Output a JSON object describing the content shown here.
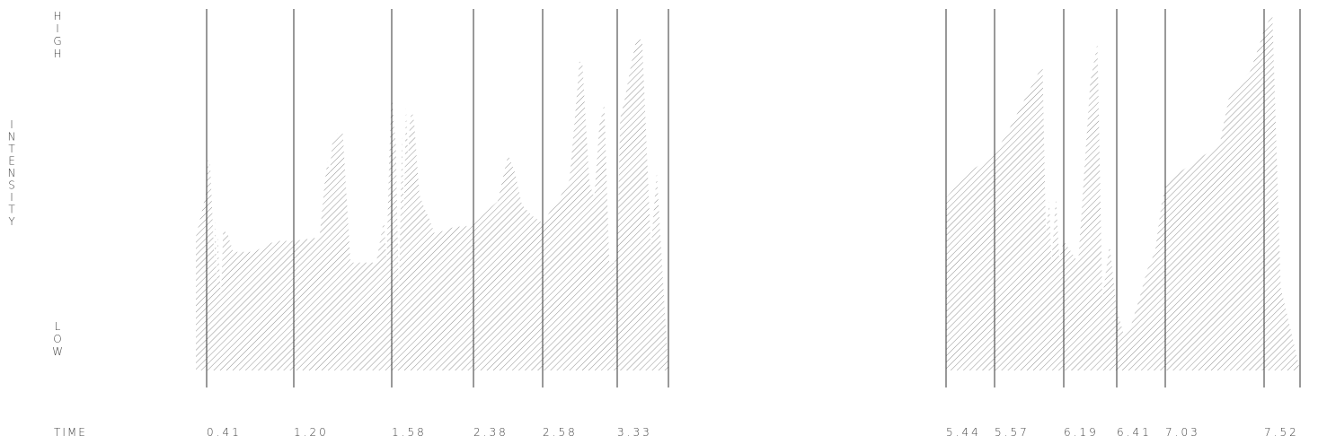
{
  "chart_data": {
    "type": "area",
    "title": "",
    "xlabel": "TIME",
    "ylabel": "INTENSITY",
    "y_high_label": "HIGH",
    "y_low_label": "LOW",
    "ylim": [
      0,
      1
    ],
    "time_markers": [
      "0.41",
      "1.20",
      "1.58",
      "2.38",
      "2.58",
      "3.33",
      "5.44",
      "5.57",
      "6.19",
      "6.41",
      "7.03",
      "7.52"
    ],
    "segments": [
      {
        "x": [
          0.32,
          0.41,
          0.42,
          0.43,
          0.44,
          0.46,
          0.48,
          0.49,
          0.5,
          0.51,
          0.52,
          0.54,
          0.56,
          0.6,
          0.65,
          0.75,
          0.85,
          0.95,
          1.05,
          1.15,
          1.2,
          1.3,
          1.32,
          1.33,
          1.34,
          1.35,
          1.37,
          1.39,
          1.42,
          1.45,
          1.48,
          1.52,
          1.55,
          1.56,
          1.57,
          1.58,
          1.6,
          1.62,
          1.63,
          1.65,
          1.68,
          1.7,
          1.72,
          1.74,
          1.76,
          1.78,
          1.8,
          1.85,
          1.9,
          1.95,
          2.0,
          2.1,
          2.2,
          2.3,
          2.38,
          2.45,
          2.48,
          2.5,
          2.52,
          2.55,
          2.58,
          2.65,
          2.75,
          2.85,
          2.92,
          2.95,
          2.98,
          3.05,
          3.1,
          3.15,
          3.2,
          3.25,
          3.28,
          3.3,
          3.33,
          3.35,
          3.38,
          3.42,
          3.46,
          3.5,
          3.56,
          3.6,
          3.65,
          3.68
        ],
        "y": [
          0.37,
          0.5,
          0.6,
          0.54,
          0.58,
          0.45,
          0.3,
          0.42,
          0.22,
          0.38,
          0.31,
          0.2,
          0.39,
          0.38,
          0.33,
          0.33,
          0.33,
          0.35,
          0.36,
          0.36,
          0.36,
          0.37,
          0.52,
          0.58,
          0.55,
          0.64,
          0.66,
          0.66,
          0.3,
          0.3,
          0.3,
          0.3,
          0.42,
          0.3,
          0.58,
          0.78,
          0.69,
          0.63,
          0.48,
          0.2,
          0.65,
          0.43,
          0.73,
          0.59,
          0.7,
          0.72,
          0.69,
          0.49,
          0.45,
          0.42,
          0.38,
          0.39,
          0.4,
          0.4,
          0.41,
          0.47,
          0.6,
          0.55,
          0.46,
          0.43,
          0.41,
          0.44,
          0.48,
          0.53,
          0.75,
          0.86,
          0.85,
          0.52,
          0.48,
          0.68,
          0.74,
          0.3,
          0.3,
          0.3,
          0.32,
          0.7,
          0.75,
          0.84,
          0.92,
          0.92,
          0.34,
          0.55,
          0.2,
          0.0
        ]
      },
      {
        "x": [
          5.44,
          5.5,
          5.57,
          5.7,
          5.85,
          6.0,
          6.03,
          6.06,
          6.08,
          6.12,
          6.15,
          6.19,
          6.25,
          6.3,
          6.33,
          6.35,
          6.38,
          6.41,
          6.5,
          6.6,
          6.7,
          6.8,
          6.9,
          6.98,
          7.03,
          7.1,
          7.2,
          7.28,
          7.3,
          7.35,
          7.4,
          7.45,
          7.5,
          7.52,
          7.55,
          7.58,
          7.62,
          7.65
        ],
        "y": [
          0.48,
          0.55,
          0.6,
          0.67,
          0.76,
          0.85,
          0.38,
          0.47,
          0.3,
          0.48,
          0.31,
          0.36,
          0.3,
          0.8,
          0.91,
          0.2,
          0.35,
          0.17,
          0.1,
          0.13,
          0.2,
          0.28,
          0.33,
          0.46,
          0.51,
          0.55,
          0.59,
          0.62,
          0.63,
          0.77,
          0.8,
          0.83,
          0.91,
          0.95,
          0.99,
          0.23,
          0.1,
          0.0
        ]
      }
    ]
  }
}
